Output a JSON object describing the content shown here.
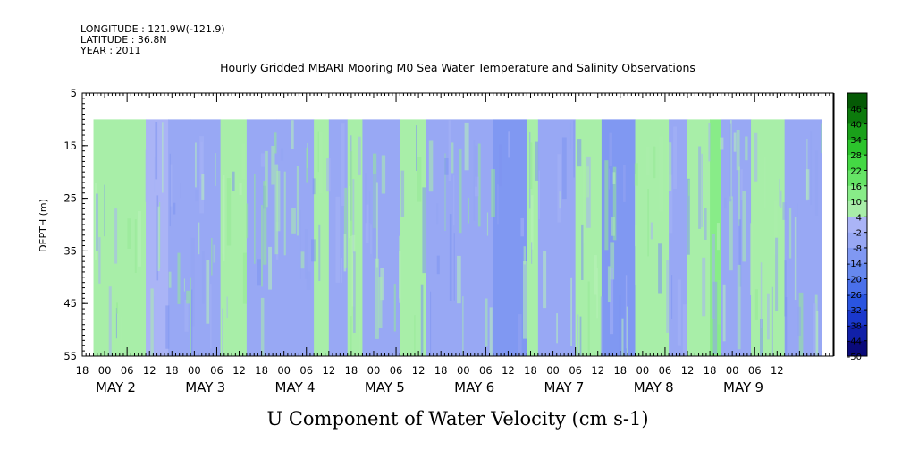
{
  "header": {
    "longitude": "LONGITUDE : 121.9W(-121.9)",
    "latitude": "LATITUDE : 36.8N",
    "year": "YEAR : 2011"
  },
  "chart_data": {
    "type": "heatmap",
    "title": "Hourly Gridded MBARI Mooring M0 Sea Water Temperature and Salinity Observations",
    "xlabel": "U Component of Water Velocity (cm s-1)",
    "ylabel": "DEPTH (m)",
    "ylim": [
      5,
      55
    ],
    "y_reversed": true,
    "y_ticks": [
      "5",
      "15",
      "25",
      "35",
      "45",
      "55"
    ],
    "data_depth_range": [
      10,
      55
    ],
    "x_start": "2011-05-01 12:00",
    "x_end": "2011-05-09 21:00",
    "data_time_start": "2011-05-01 15:00",
    "data_time_end": "2011-05-09 18:00",
    "hour_ticks": [
      "18",
      "00",
      "06",
      "12",
      "18",
      "00",
      "06",
      "12",
      "18",
      "00",
      "06",
      "12",
      "18",
      "00",
      "06",
      "12",
      "18",
      "00",
      "06",
      "12",
      "18",
      "00",
      "06",
      "12",
      "18",
      "00",
      "06",
      "12",
      "18",
      "00",
      "06",
      "12"
    ],
    "day_labels": [
      {
        "month": "MAY",
        "day": "2"
      },
      {
        "month": "MAY",
        "day": "3"
      },
      {
        "month": "MAY",
        "day": "4"
      },
      {
        "month": "MAY",
        "day": "5"
      },
      {
        "month": "MAY",
        "day": "6"
      },
      {
        "month": "MAY",
        "day": "7"
      },
      {
        "month": "MAY",
        "day": "8"
      },
      {
        "month": "MAY",
        "day": "9"
      }
    ],
    "colorbar": {
      "levels": [
        -50,
        -44,
        -38,
        -32,
        -26,
        -20,
        -14,
        -8,
        -2,
        4,
        10,
        16,
        22,
        28,
        34,
        40,
        46
      ],
      "labels": [
        "46",
        "40",
        "34",
        "28",
        "22",
        "16",
        "10",
        "4",
        "-2",
        "-8",
        "-14",
        "-20",
        "-26",
        "-32",
        "-38",
        "-44",
        "-50"
      ],
      "colors": [
        "#0a0a7a",
        "#1020a8",
        "#1a38cc",
        "#2a55e0",
        "#4a70ea",
        "#6688ee",
        "#8098f2",
        "#98a8f4",
        "#aab4f6",
        "#a8eea8",
        "#88ec88",
        "#66e466",
        "#44d844",
        "#2cc42c",
        "#1aa01a",
        "#0c7a0c",
        "#055a05"
      ]
    },
    "bands": [
      {
        "start": "2011-05-01 15:00",
        "end": "2011-05-01 22:00",
        "value": 5
      },
      {
        "start": "2011-05-01 22:00",
        "end": "2011-05-02 05:00",
        "value": 7
      },
      {
        "start": "2011-05-02 05:00",
        "end": "2011-05-02 11:00",
        "value": 3
      },
      {
        "start": "2011-05-02 11:00",
        "end": "2011-05-02 17:00",
        "value": -5
      },
      {
        "start": "2011-05-02 17:00",
        "end": "2011-05-03 01:00",
        "value": -4
      },
      {
        "start": "2011-05-03 01:00",
        "end": "2011-05-03 08:00",
        "value": 5
      },
      {
        "start": "2011-05-03 08:00",
        "end": "2011-05-03 16:00",
        "value": -4
      },
      {
        "start": "2011-05-03 16:00",
        "end": "2011-05-04 02:00",
        "value": -6
      },
      {
        "start": "2011-05-04 02:00",
        "end": "2011-05-04 06:00",
        "value": 6
      },
      {
        "start": "2011-05-04 06:00",
        "end": "2011-05-04 11:00",
        "value": -4
      },
      {
        "start": "2011-05-04 11:00",
        "end": "2011-05-04 15:00",
        "value": 5
      },
      {
        "start": "2011-05-04 15:00",
        "end": "2011-05-05 01:00",
        "value": -4
      },
      {
        "start": "2011-05-05 01:00",
        "end": "2011-05-05 08:00",
        "value": 6
      },
      {
        "start": "2011-05-05 08:00",
        "end": "2011-05-06 02:00",
        "value": -8
      },
      {
        "start": "2011-05-06 02:00",
        "end": "2011-05-06 11:00",
        "value": -14
      },
      {
        "start": "2011-05-06 11:00",
        "end": "2011-05-06 14:00",
        "value": 5
      },
      {
        "start": "2011-05-06 14:00",
        "end": "2011-05-07 00:00",
        "value": -7
      },
      {
        "start": "2011-05-07 00:00",
        "end": "2011-05-07 07:00",
        "value": 5
      },
      {
        "start": "2011-05-07 07:00",
        "end": "2011-05-07 16:00",
        "value": -12
      },
      {
        "start": "2011-05-07 16:00",
        "end": "2011-05-07 20:00",
        "value": 4
      },
      {
        "start": "2011-05-07 20:00",
        "end": "2011-05-08 01:00",
        "value": 6
      },
      {
        "start": "2011-05-08 01:00",
        "end": "2011-05-08 06:00",
        "value": -6
      },
      {
        "start": "2011-05-08 06:00",
        "end": "2011-05-08 12:00",
        "value": 6
      },
      {
        "start": "2011-05-08 12:00",
        "end": "2011-05-08 15:00",
        "value": 12
      },
      {
        "start": "2011-05-08 15:00",
        "end": "2011-05-08 23:00",
        "value": -5
      },
      {
        "start": "2011-05-08 23:00",
        "end": "2011-05-09 08:00",
        "value": 7
      },
      {
        "start": "2011-05-09 08:00",
        "end": "2011-05-09 18:00",
        "value": -5
      }
    ]
  }
}
